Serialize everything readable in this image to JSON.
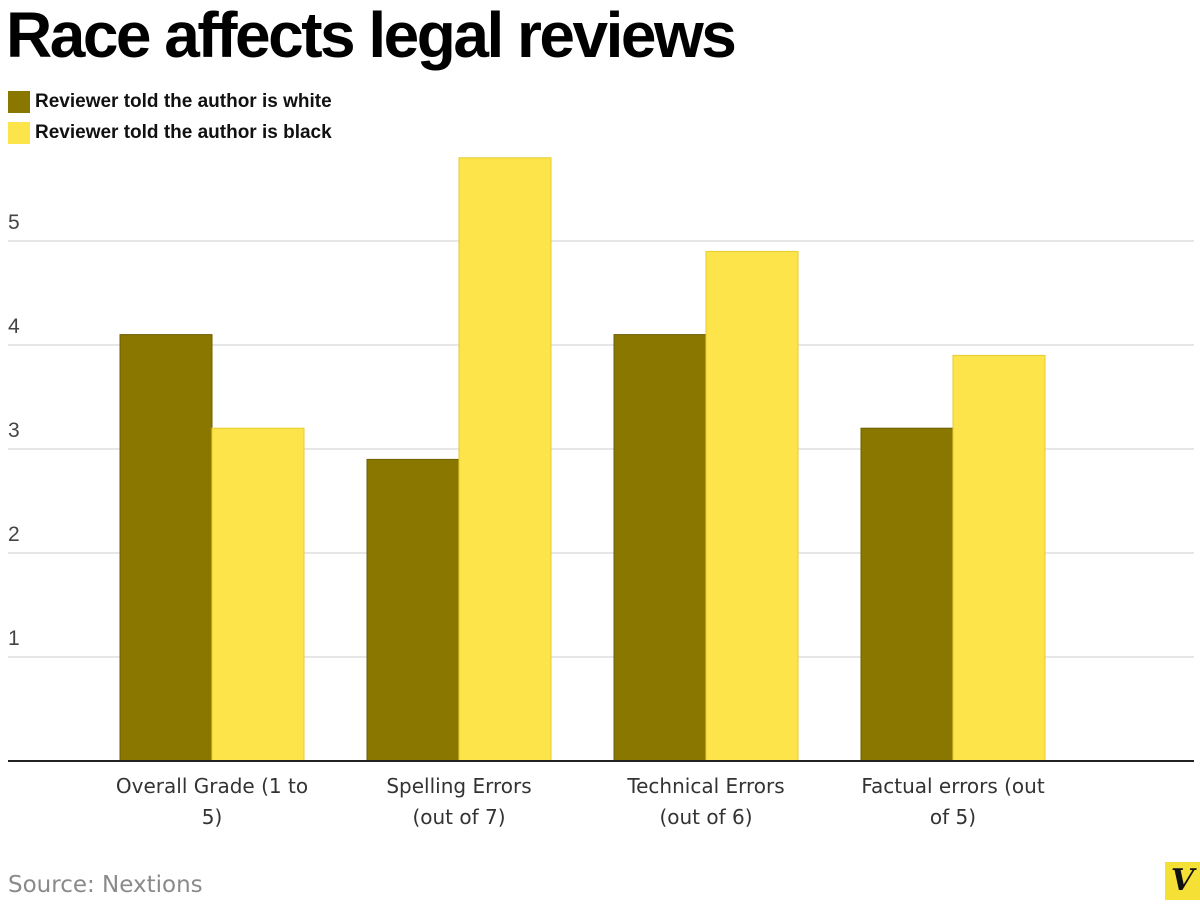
{
  "title": "Race affects legal reviews",
  "source": "Source: Nextions",
  "logo": "V",
  "colors": {
    "white_series": "#8a7700",
    "black_series": "#fde44a",
    "grid": "#dddddd",
    "axis": "#222222",
    "logo_bg": "#f5e135"
  },
  "chart_data": {
    "type": "bar",
    "title": "Race affects legal reviews",
    "categories": [
      [
        "Overall Grade (1 to",
        "5)"
      ],
      [
        "Spelling Errors",
        "(out of 7)"
      ],
      [
        "Technical Errors",
        "(out of 6)"
      ],
      [
        "Factual errors (out",
        "of 5)"
      ]
    ],
    "series": [
      {
        "name": "Reviewer told the author is white",
        "color": "#8a7700",
        "values": [
          4.1,
          2.9,
          4.1,
          3.2
        ]
      },
      {
        "name": "Reviewer told the author is black",
        "color": "#fde44a",
        "values": [
          3.2,
          5.8,
          4.9,
          3.9
        ]
      }
    ],
    "yticks": [
      1,
      2,
      3,
      4,
      5
    ],
    "ylim": [
      0,
      6
    ],
    "xlabel": "",
    "ylabel": "",
    "grid": true,
    "legend": "top-left"
  }
}
